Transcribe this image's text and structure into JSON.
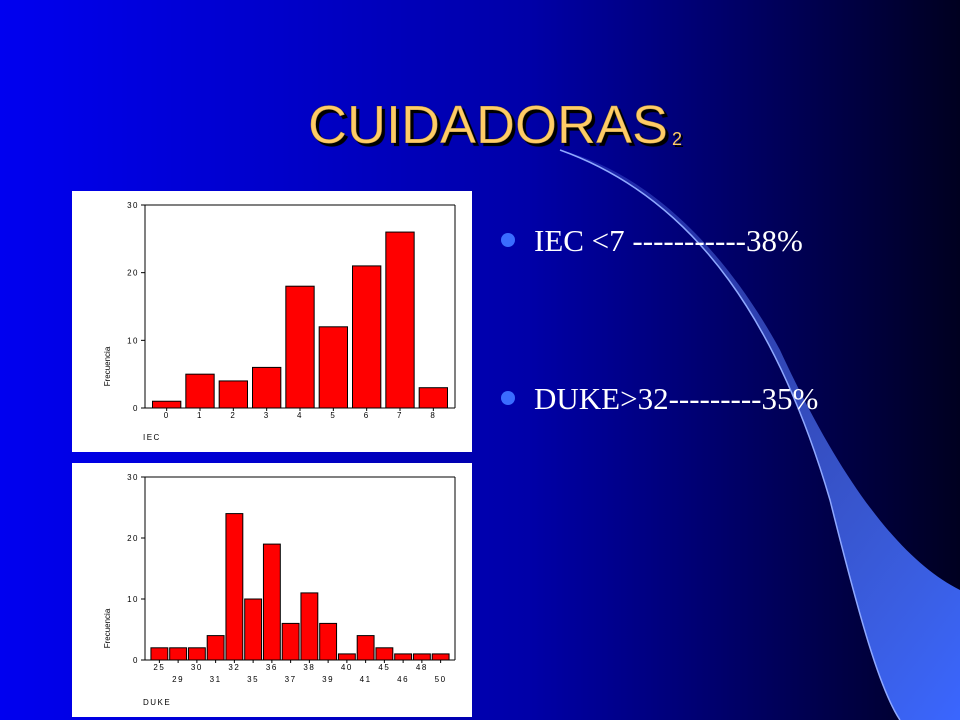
{
  "slide": {
    "title": "CUIDADORAS",
    "title_subscript": "2",
    "bullets": [
      "IEC <7 -----------38%",
      "DUKE>32---------35%"
    ]
  },
  "chart_data": [
    {
      "type": "bar",
      "ylabel": "Frecuencia",
      "xlabel": "IEC",
      "categories": [
        "0",
        "1",
        "2",
        "3",
        "4",
        "5",
        "6",
        "7",
        "8"
      ],
      "values": [
        1,
        5,
        4,
        6,
        18,
        12,
        21,
        26,
        3
      ],
      "color": "#ff0000",
      "ylim": [
        0,
        30
      ],
      "yticks": [
        0,
        10,
        20,
        30
      ]
    },
    {
      "type": "bar",
      "ylabel": "Frecuencia",
      "xlabel": "DUKE",
      "categories": [
        "25",
        "29",
        "30",
        "31",
        "32",
        "35",
        "36",
        "37",
        "38",
        "39",
        "40",
        "41",
        "45",
        "46",
        "48",
        "50"
      ],
      "values": [
        2,
        2,
        2,
        4,
        24,
        10,
        19,
        6,
        11,
        6,
        1,
        4,
        2,
        1,
        1,
        1
      ],
      "color": "#ff0000",
      "ylim": [
        0,
        30
      ],
      "yticks": [
        0,
        10,
        20,
        30
      ]
    }
  ]
}
